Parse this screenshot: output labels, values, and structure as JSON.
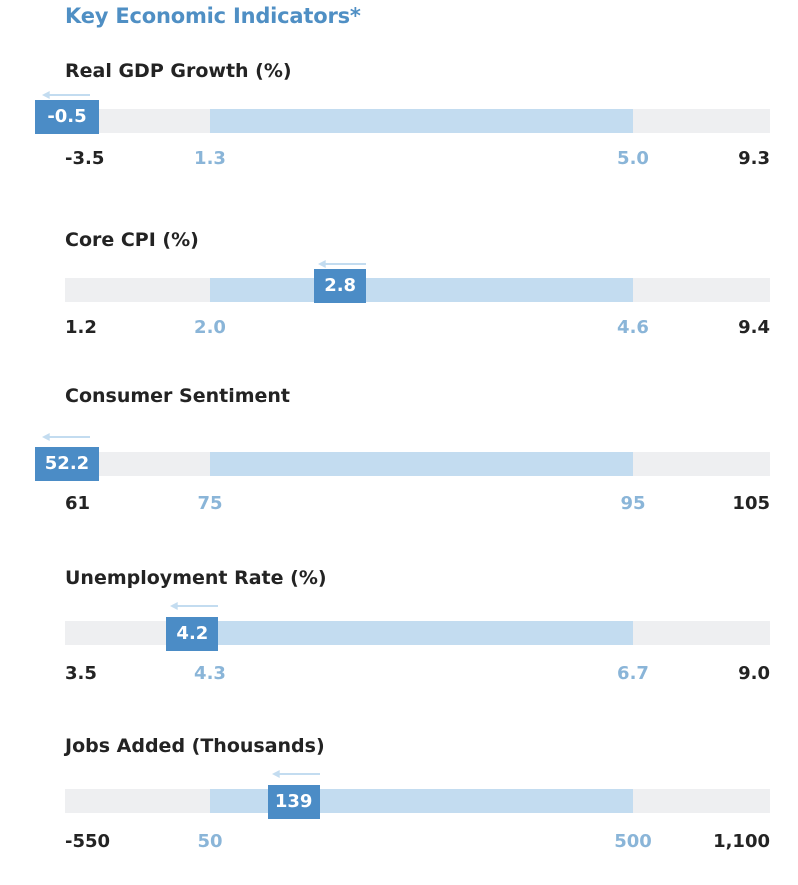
{
  "title": "Key Economic Indicators*",
  "colors": {
    "title": "#4f8fc4",
    "track": "#eeeff1",
    "range": "#c3dcf0",
    "marker": "#4b8cc6",
    "arrow": "#c3dcf0",
    "mid_label": "#8ab5d8",
    "end_label": "#232323"
  },
  "indicators": [
    {
      "label": "Real GDP Growth (%)",
      "value": "-0.5",
      "min": "-3.5",
      "range_low": "1.3",
      "range_high": "5.0",
      "max": "9.3"
    },
    {
      "label": "Core CPI (%)",
      "value": "2.8",
      "min": "1.2",
      "range_low": "2.0",
      "range_high": "4.6",
      "max": "9.4"
    },
    {
      "label": "Consumer Sentiment",
      "value": "52.2",
      "min": "61",
      "range_low": "75",
      "range_high": "95",
      "max": "105"
    },
    {
      "label": "Unemployment Rate (%)",
      "value": "4.2",
      "min": "3.5",
      "range_low": "4.3",
      "range_high": "6.7",
      "max": "9.0"
    },
    {
      "label": "Jobs Added (Thousands)",
      "value": "139",
      "min": "-550",
      "range_low": "50",
      "range_high": "500",
      "max": "1,100"
    }
  ],
  "chart_data": {
    "type": "bar",
    "title": "Key Economic Indicators*",
    "series": [
      {
        "name": "Real GDP Growth (%)",
        "value": -0.5,
        "scale_min": -3.5,
        "range": [
          1.3,
          5.0
        ],
        "scale_max": 9.3,
        "trend": "down"
      },
      {
        "name": "Core CPI (%)",
        "value": 2.8,
        "scale_min": 1.2,
        "range": [
          2.0,
          4.6
        ],
        "scale_max": 9.4,
        "trend": "down"
      },
      {
        "name": "Consumer Sentiment",
        "value": 52.2,
        "scale_min": 61,
        "range": [
          75,
          95
        ],
        "scale_max": 105,
        "trend": "down"
      },
      {
        "name": "Unemployment Rate (%)",
        "value": 4.2,
        "scale_min": 3.5,
        "range": [
          4.3,
          6.7
        ],
        "scale_max": 9.0,
        "trend": "down"
      },
      {
        "name": "Jobs Added (Thousands)",
        "value": 139,
        "scale_min": -550,
        "range": [
          50,
          500
        ],
        "scale_max": 1100,
        "trend": "down"
      }
    ]
  }
}
